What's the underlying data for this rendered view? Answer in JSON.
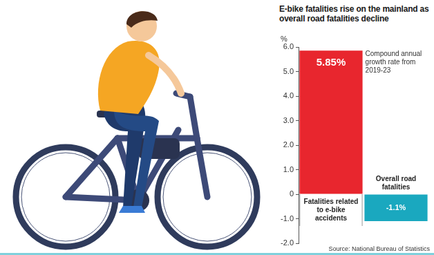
{
  "chart_data": {
    "type": "bar",
    "title": "E-bike fatalities rise on the mainland as overall road fatalities decline",
    "y_label": "%",
    "annotation": "Compound annual growth rate from 2019-23",
    "source": "Source: National Bureau of Statistics",
    "categories": [
      "Fatalities related to e-bike accidents",
      "Overall road fatalities"
    ],
    "values": [
      5.85,
      -1.1
    ],
    "value_labels": [
      "5.85%",
      "-1.1%"
    ],
    "colors": [
      "#e8262e",
      "#1aa8bf"
    ],
    "data_labels": true,
    "ylim": [
      -2,
      6
    ],
    "yticks": [
      {
        "value": -2,
        "label": "-2.0"
      },
      {
        "value": -1,
        "label": "-1.0"
      },
      {
        "value": 0,
        "label": "0"
      },
      {
        "value": 1,
        "label": "1.0"
      },
      {
        "value": 2,
        "label": "2.0"
      },
      {
        "value": 3,
        "label": "3.0"
      },
      {
        "value": 4,
        "label": "4.0"
      },
      {
        "value": 5,
        "label": "5.0"
      },
      {
        "value": 6,
        "label": "6.0"
      }
    ],
    "grid": false
  }
}
